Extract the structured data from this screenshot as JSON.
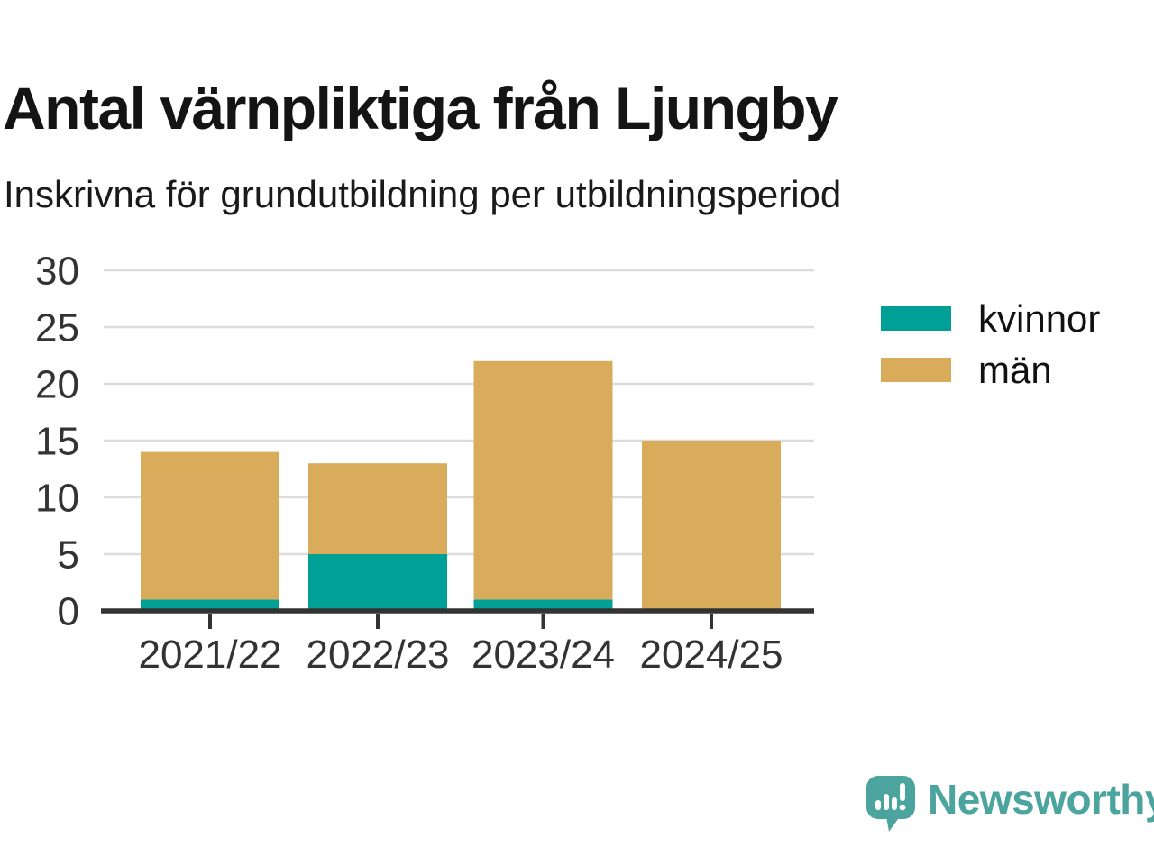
{
  "title": "Antal värnpliktiga från Ljungby",
  "subtitle": "Inskrivna för grundutbildning per utbildningsperiod",
  "chart_data": {
    "type": "bar",
    "stacked": true,
    "categories": [
      "2021/22",
      "2022/23",
      "2023/24",
      "2024/25"
    ],
    "series": [
      {
        "name": "kvinnor",
        "color": "#00A096",
        "values": [
          1,
          5,
          1,
          0
        ]
      },
      {
        "name": "män",
        "color": "#D9AC5B",
        "values": [
          13,
          8,
          21,
          15
        ]
      }
    ],
    "totals": [
      14,
      13,
      22,
      15
    ],
    "ylim": [
      0,
      30
    ],
    "yticks": [
      0,
      5,
      10,
      15,
      20,
      25,
      30
    ],
    "grid": true,
    "grid_color": "#dcdcdc",
    "axis_color": "#333333",
    "tick_label_color": "#333333",
    "legend_position": "right"
  },
  "legend": {
    "items": [
      {
        "label": "kvinnor",
        "color": "#00A096"
      },
      {
        "label": "män",
        "color": "#D9AC5B"
      }
    ]
  },
  "branding": {
    "name": "Newsworthy",
    "color": "#4BA49D",
    "icon": "bar-chart-speech-bubble-icon"
  }
}
